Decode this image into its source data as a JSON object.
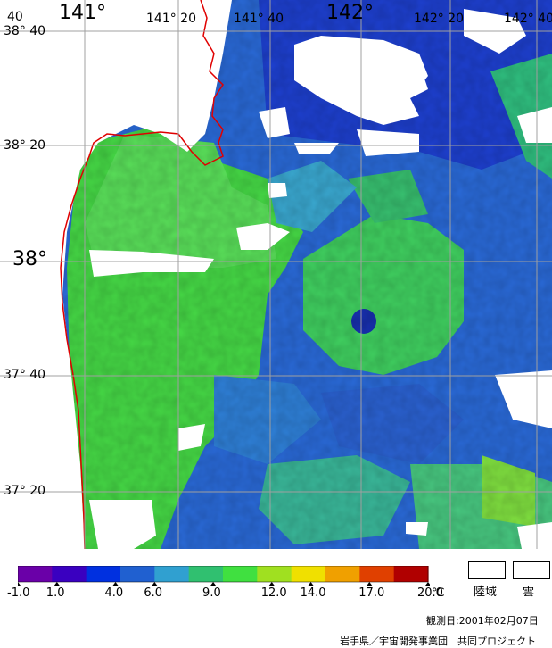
{
  "longitude_labels": [
    "141°",
    "141° 20",
    "141° 40",
    "142°",
    "142° 20",
    "142° 40"
  ],
  "latitude_labels": [
    "38° 40",
    "38° 20",
    "38°",
    "37° 40",
    "37° 20"
  ],
  "colorbar": {
    "tick_labels": [
      "-1.0",
      "1.0",
      "4.0",
      "6.0",
      "9.0",
      "12.0",
      "14.0",
      "17.0",
      "20.0"
    ],
    "tick_values": [
      -1,
      1,
      4,
      6,
      9,
      12,
      14,
      17,
      20
    ],
    "unit": "℃",
    "colors": [
      "#6a00a8",
      "#3a00c0",
      "#0030e0",
      "#2060d0",
      "#30a0d0",
      "#30c070",
      "#40e040",
      "#a0e020",
      "#f0e000",
      "#f0a000",
      "#e04000",
      "#b00000"
    ]
  },
  "legend": {
    "land_label": "陸域",
    "cloud_label": "雲"
  },
  "footer": {
    "observation_date": "観測日:2001年02月07日",
    "credit": "岩手県／宇宙開発事業団　共同プロジェクト"
  },
  "colors": {
    "coastline": "#e00000",
    "grid": "#a0a0a0",
    "cloud": "#ffffff"
  }
}
